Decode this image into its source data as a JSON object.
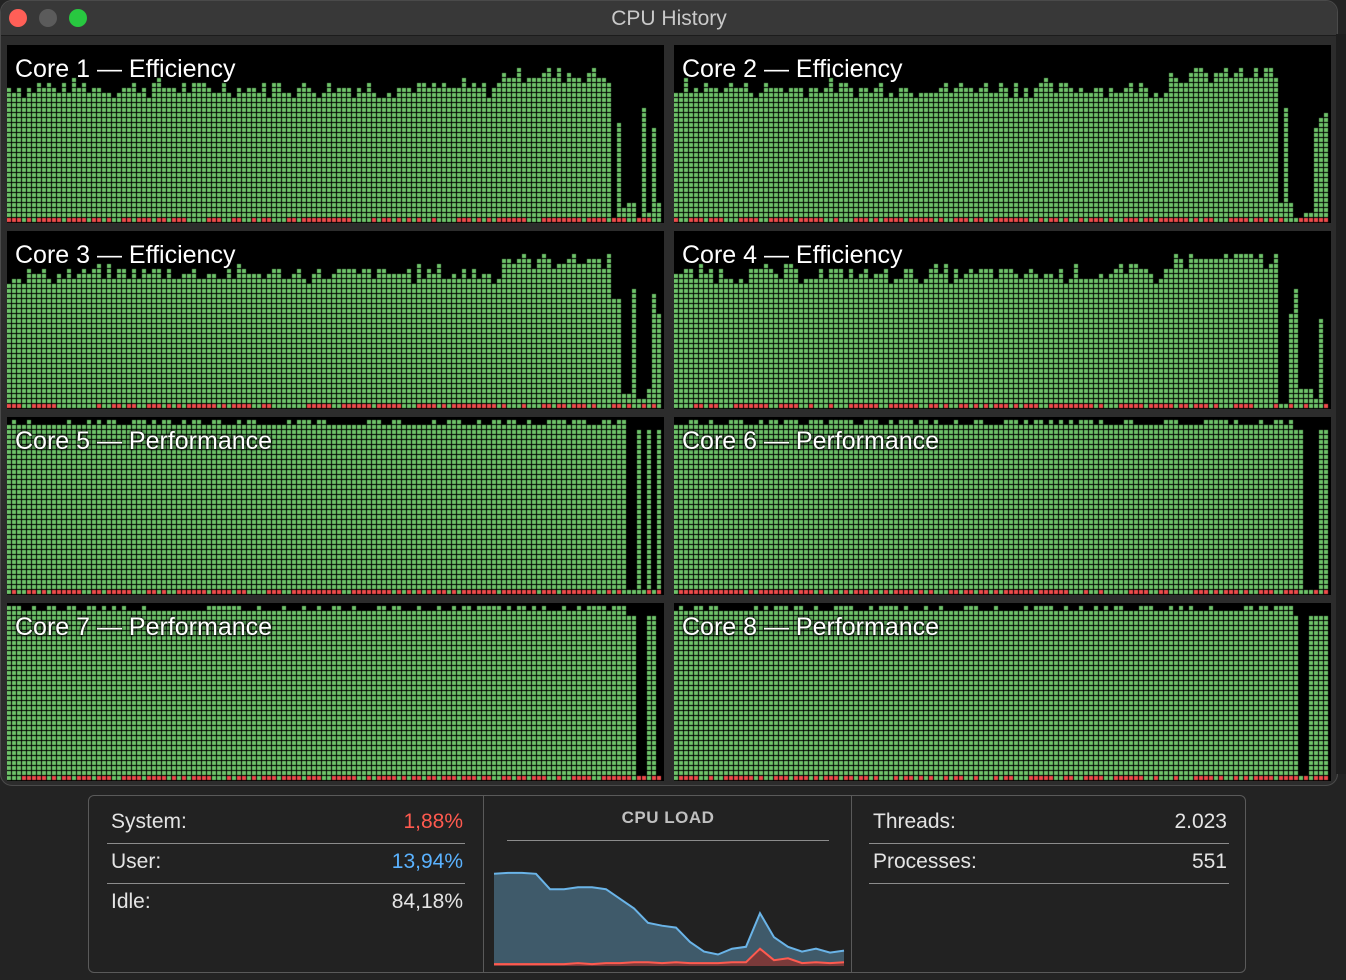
{
  "window": {
    "title": "CPU History"
  },
  "colors": {
    "user": "#6ec36a",
    "system": "#ee4c4c",
    "system_text": "#ff5a4f",
    "user_text": "#5ab2ff",
    "background": "#000000"
  },
  "cores": [
    {
      "label": "Core 1 — Efficiency",
      "kind": "efficiency"
    },
    {
      "label": "Core 2 — Efficiency",
      "kind": "efficiency"
    },
    {
      "label": "Core 3 — Efficiency",
      "kind": "efficiency"
    },
    {
      "label": "Core 4 — Efficiency",
      "kind": "efficiency"
    },
    {
      "label": "Core 5 — Performance",
      "kind": "performance"
    },
    {
      "label": "Core 6 — Performance",
      "kind": "performance"
    },
    {
      "label": "Core 7 — Performance",
      "kind": "performance"
    },
    {
      "label": "Core 8 — Performance",
      "kind": "performance"
    }
  ],
  "stats": {
    "system": {
      "label": "System:",
      "value": "1,88%"
    },
    "user": {
      "label": "User:",
      "value": "13,94%"
    },
    "idle": {
      "label": "Idle:",
      "value": "84,18%"
    },
    "threads": {
      "label": "Threads:",
      "value": "2.023"
    },
    "processes": {
      "label": "Processes:",
      "value": "551"
    }
  },
  "cpu_load": {
    "title": "CPU LOAD",
    "user_series": [
      0.96,
      0.97,
      0.97,
      0.96,
      0.8,
      0.8,
      0.82,
      0.82,
      0.8,
      0.7,
      0.6,
      0.45,
      0.42,
      0.4,
      0.25,
      0.15,
      0.12,
      0.18,
      0.2,
      0.55,
      0.3,
      0.2,
      0.15,
      0.18,
      0.14,
      0.16
    ],
    "system_series": [
      0.02,
      0.02,
      0.02,
      0.02,
      0.02,
      0.02,
      0.03,
      0.02,
      0.03,
      0.03,
      0.04,
      0.04,
      0.03,
      0.04,
      0.03,
      0.03,
      0.03,
      0.04,
      0.04,
      0.18,
      0.06,
      0.08,
      0.03,
      0.04,
      0.03,
      0.04
    ]
  }
}
